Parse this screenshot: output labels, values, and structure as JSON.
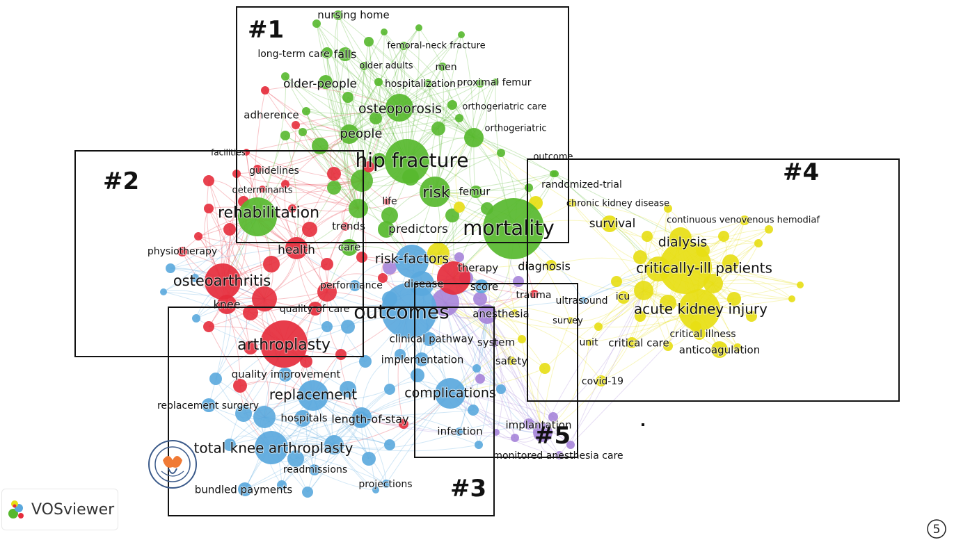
{
  "app": {
    "name": "VOSviewer"
  },
  "figure_marker": "⑤",
  "colors": {
    "cluster1": "#57b82e",
    "cluster2": "#e52d3c",
    "cluster3": "#5aa8dd",
    "cluster4": "#e7de14",
    "cluster5": "#a684d9",
    "box": "#111111"
  },
  "clusters": [
    {
      "id": "c1",
      "label": "#1"
    },
    {
      "id": "c2",
      "label": "#2"
    },
    {
      "id": "c3",
      "label": "#3"
    },
    {
      "id": "c4",
      "label": "#4"
    },
    {
      "id": "c5",
      "label": "#5"
    }
  ],
  "labels": {
    "nursing_home": "nursing home",
    "femoral_neck_fracture": "femoral-neck fracture",
    "long_term_care": "long-term care",
    "falls": "falls",
    "older_adults": "older adults",
    "men": "men",
    "older_people": "older-people",
    "hospitalization": "hospitalization",
    "proximal_femur": "proximal femur",
    "osteoporosis": "osteoporosis",
    "orthogeriatric_care": "orthogeriatric care",
    "adherence": "adherence",
    "people": "people",
    "orthogeriatric": "orthogeriatric",
    "facilities": "facilities",
    "outcome": "outcome",
    "hip_fracture": "hip fracture",
    "guidelines": "guidelines",
    "determinants": "determinants",
    "risk": "risk",
    "femur": "femur",
    "randomized_trial": "randomized-trial",
    "chronic_kidney_disease": "chronic kidney disease",
    "life": "life",
    "rehabilitation": "rehabilitation",
    "survival": "survival",
    "continuous_venovenous": "continuous venovenous hemodiaf",
    "trends": "trends",
    "predictors": "predictors",
    "mortality": "mortality",
    "dialysis": "dialysis",
    "physiotherapy": "physiotherapy",
    "health": "health",
    "care": "care",
    "risk_factors": "risk-factors",
    "therapy": "therapy",
    "diagnosis": "diagnosis",
    "critically_ill_patients": "critically-ill patients",
    "osteoarthritis": "osteoarthritis",
    "performance": "performance",
    "disease": "disease",
    "score": "score",
    "trauma": "trauma",
    "ultrasound": "ultrasound",
    "icu": "icu",
    "knee": "knee",
    "quality_of_care": "quality of care",
    "outcomes": "outcomes",
    "anesthesia": "anesthesia",
    "acute_kidney_injury": "acute kidney injury",
    "survey": "survey",
    "critical_illness": "critical illness",
    "clinical_pathway": "clinical pathway",
    "system": "system",
    "unit": "unit",
    "critical_care": "critical care",
    "arthroplasty": "arthroplasty",
    "anticoagulation": "anticoagulation",
    "implementation": "implementation",
    "safety": "safety",
    "quality_improvement": "quality improvement",
    "covid_19": "covid-19",
    "replacement": "replacement",
    "complications": "complications",
    "replacement_surgery": "replacement surgery",
    "hospitals": "hospitals",
    "length_of_stay": "length-of-stay",
    "implantation": "implantation",
    "infection": "infection",
    "total_knee_arthroplasty": "total knee arthroplasty",
    "monitored_anesthesia_care": "monitored anesthesia care",
    "readmissions": "readmissions",
    "projections": "projections",
    "bundled_payments": "bundled payments"
  }
}
